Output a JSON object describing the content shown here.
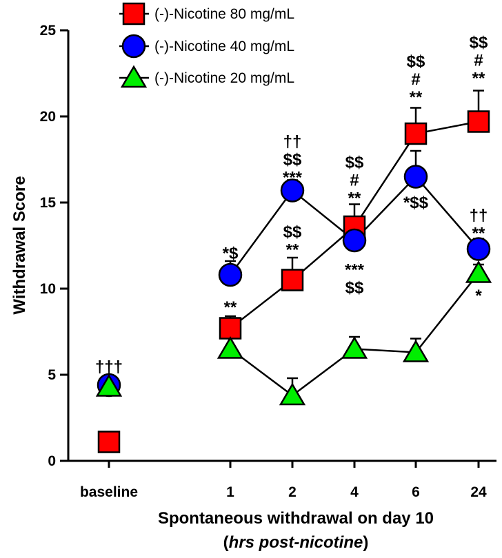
{
  "chart_data": {
    "type": "line",
    "ylabel": "Withdrawal Score",
    "xlabel_line1": "Spontaneous withdrawal on day 10",
    "xlabel_line2_paren_open": "(",
    "xlabel_line2_italic": "hrs post-nicotine",
    "xlabel_line2_paren_close": ")",
    "categories": [
      "baseline",
      "1",
      "2",
      "4",
      "6",
      "24"
    ],
    "ylim": [
      0,
      25
    ],
    "yticks": [
      0,
      5,
      10,
      15,
      20,
      25
    ],
    "grid": false,
    "legend_position": "top-left",
    "series": [
      {
        "name": "(-)-Nicotine 80 mg/mL",
        "marker": "square",
        "color": "#ff0000",
        "values": [
          1.1,
          7.7,
          10.5,
          13.6,
          19.0,
          19.7
        ],
        "errors": [
          0,
          0.7,
          1.3,
          1.3,
          1.5,
          1.8
        ]
      },
      {
        "name": "(-)-Nicotine 40 mg/mL",
        "marker": "circle",
        "color": "#0000ff",
        "values": [
          4.4,
          10.8,
          15.7,
          12.8,
          16.5,
          12.3
        ],
        "errors": [
          0,
          0.8,
          0.6,
          0.8,
          1.5,
          0.6
        ]
      },
      {
        "name": "(-)-Nicotine 20 mg/mL",
        "marker": "triangle",
        "color": "#00ee00",
        "values": [
          4.3,
          6.5,
          3.8,
          6.5,
          6.3,
          10.9
        ],
        "errors": [
          0,
          0.7,
          1.0,
          0.7,
          0.8,
          0.5
        ]
      }
    ],
    "annotations": [
      {
        "category": "baseline",
        "y": 5.15,
        "lines": [
          "†††"
        ]
      },
      {
        "category": "1",
        "y": 11.75,
        "lines": [
          "*$"
        ]
      },
      {
        "category": "1",
        "y": 8.6,
        "lines": [
          "**"
        ]
      },
      {
        "category": "2",
        "y": 16.15,
        "lines": [
          "††",
          "$$",
          "***"
        ]
      },
      {
        "category": "2",
        "y": 11.95,
        "lines": [
          "$$",
          "**"
        ]
      },
      {
        "category": "4",
        "y": 14.95,
        "lines": [
          "$$",
          "#",
          "**"
        ]
      },
      {
        "category": "4",
        "y": 11.5,
        "lines": [
          "***",
          "$$"
        ],
        "below": true
      },
      {
        "category": "6",
        "y": 20.8,
        "lines": [
          "$$",
          "#",
          "**"
        ]
      },
      {
        "category": "6",
        "y": 15.4,
        "lines": [
          "*$$"
        ],
        "below": true
      },
      {
        "category": "24",
        "y": 21.9,
        "lines": [
          "$$",
          "#",
          "**"
        ]
      },
      {
        "category": "24",
        "y": 12.9,
        "lines": [
          "††",
          "**"
        ]
      },
      {
        "category": "24",
        "y": 10.0,
        "lines": [
          "*"
        ],
        "below": true
      }
    ]
  }
}
